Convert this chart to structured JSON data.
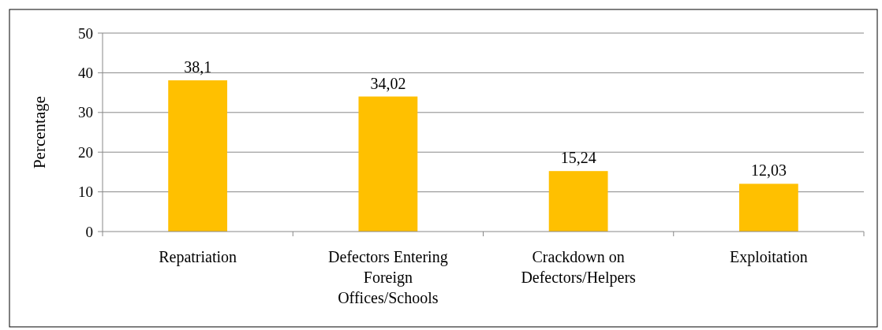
{
  "chart_data": {
    "type": "bar",
    "ylabel": "Percentage",
    "categories": [
      "Repatriation",
      "Defectors Entering Foreign Offices/Schools",
      "Crackdown on Defectors/Helpers",
      "Exploitation"
    ],
    "values": [
      38.1,
      34.02,
      15.24,
      12.03
    ],
    "value_labels": [
      "38,1",
      "34,02",
      "15,24",
      "12,03"
    ],
    "color": "#ffc000",
    "ylim": [
      0,
      50
    ],
    "yticks": [
      0,
      10,
      20,
      30,
      40,
      50
    ],
    "grid": "y"
  }
}
